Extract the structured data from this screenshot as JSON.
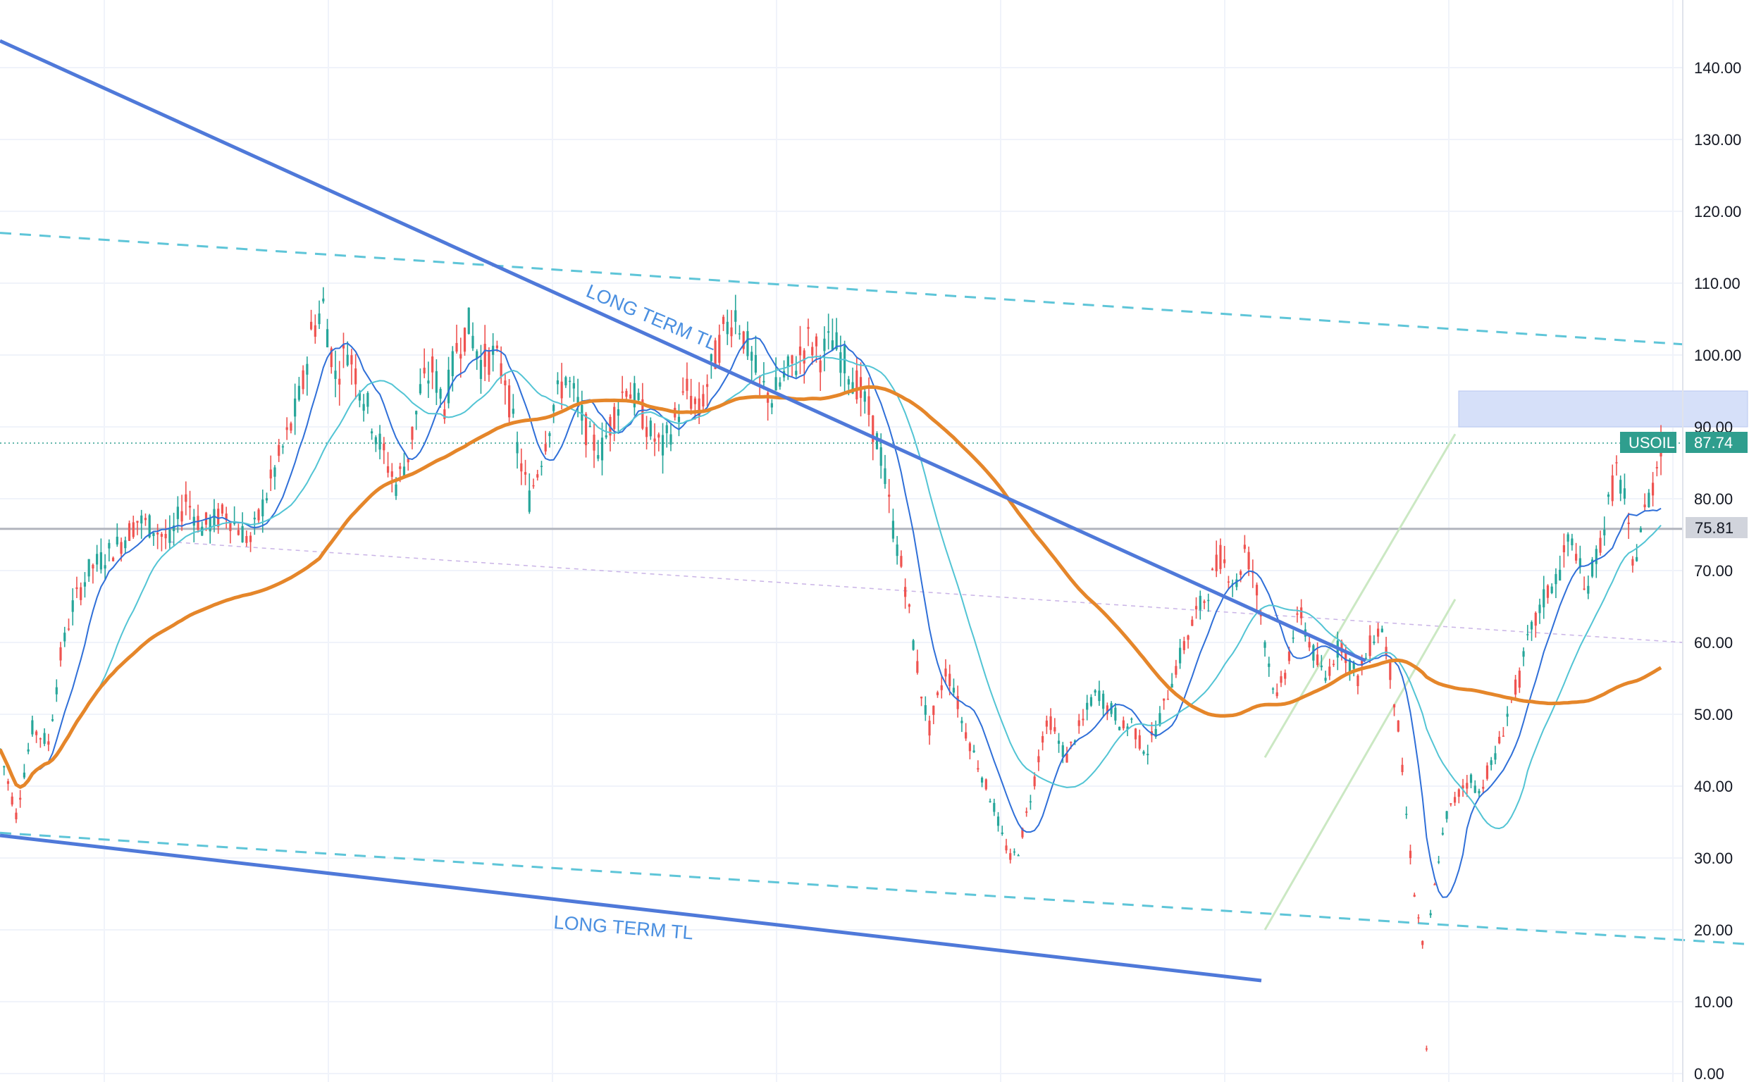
{
  "chart_data": {
    "type": "candlestick",
    "symbol": "USOIL",
    "last_price": "87.74",
    "horizontal_level": "75.81",
    "y_axis": {
      "ticks": [
        "0.00",
        "10.00",
        "20.00",
        "30.00",
        "40.00",
        "50.00",
        "60.00",
        "70.00",
        "80.00",
        "90.00",
        "100.00",
        "110.00",
        "120.00",
        "130.00",
        "140.00"
      ],
      "range": [
        0,
        146
      ]
    },
    "annotations": [
      {
        "text": "LONG TERM TL"
      },
      {
        "text": "LONG TERM TL"
      }
    ],
    "grid": true,
    "price_path": [
      [
        0,
        45
      ],
      [
        8,
        36
      ],
      [
        16,
        48
      ],
      [
        24,
        46
      ],
      [
        30,
        58
      ],
      [
        36,
        65
      ],
      [
        44,
        70
      ],
      [
        52,
        72
      ],
      [
        60,
        74
      ],
      [
        68,
        77
      ],
      [
        76,
        76
      ],
      [
        84,
        74
      ],
      [
        92,
        80
      ],
      [
        100,
        76
      ],
      [
        112,
        78
      ],
      [
        124,
        74
      ],
      [
        136,
        84
      ],
      [
        144,
        90
      ],
      [
        150,
        96
      ],
      [
        154,
        103
      ],
      [
        160,
        107
      ],
      [
        166,
        97
      ],
      [
        172,
        101
      ],
      [
        178,
        96
      ],
      [
        184,
        91
      ],
      [
        190,
        86
      ],
      [
        196,
        82
      ],
      [
        202,
        86
      ],
      [
        208,
        95
      ],
      [
        214,
        98
      ],
      [
        220,
        93
      ],
      [
        226,
        101
      ],
      [
        232,
        104
      ],
      [
        238,
        99
      ],
      [
        244,
        100
      ],
      [
        250,
        97
      ],
      [
        256,
        87
      ],
      [
        262,
        80
      ],
      [
        268,
        86
      ],
      [
        274,
        93
      ],
      [
        280,
        97
      ],
      [
        286,
        93
      ],
      [
        292,
        88
      ],
      [
        298,
        87
      ],
      [
        304,
        92
      ],
      [
        310,
        96
      ],
      [
        316,
        93
      ],
      [
        322,
        89
      ],
      [
        328,
        87
      ],
      [
        334,
        91
      ],
      [
        340,
        95
      ],
      [
        346,
        92
      ],
      [
        352,
        98
      ],
      [
        358,
        103
      ],
      [
        364,
        106
      ],
      [
        370,
        101
      ],
      [
        376,
        96
      ],
      [
        382,
        94
      ],
      [
        388,
        97
      ],
      [
        394,
        99
      ],
      [
        400,
        102
      ],
      [
        406,
        100
      ],
      [
        412,
        102
      ],
      [
        418,
        99
      ],
      [
        424,
        96
      ],
      [
        430,
        92
      ],
      [
        436,
        86
      ],
      [
        442,
        76
      ],
      [
        448,
        68
      ],
      [
        452,
        60
      ],
      [
        456,
        53
      ],
      [
        460,
        48
      ],
      [
        464,
        52
      ],
      [
        468,
        56
      ],
      [
        472,
        54
      ],
      [
        476,
        49
      ],
      [
        480,
        46
      ],
      [
        484,
        43
      ],
      [
        488,
        40
      ],
      [
        492,
        37
      ],
      [
        496,
        33
      ],
      [
        500,
        30
      ],
      [
        504,
        31
      ],
      [
        508,
        36
      ],
      [
        512,
        41
      ],
      [
        516,
        47
      ],
      [
        520,
        49
      ],
      [
        524,
        46
      ],
      [
        528,
        44
      ],
      [
        532,
        47
      ],
      [
        536,
        49
      ],
      [
        540,
        52
      ],
      [
        544,
        53
      ],
      [
        548,
        51
      ],
      [
        552,
        50
      ],
      [
        556,
        48
      ],
      [
        560,
        49
      ],
      [
        564,
        46
      ],
      [
        568,
        45
      ],
      [
        572,
        48
      ],
      [
        576,
        51
      ],
      [
        580,
        55
      ],
      [
        584,
        58
      ],
      [
        588,
        61
      ],
      [
        592,
        64
      ],
      [
        596,
        66
      ],
      [
        600,
        69
      ],
      [
        604,
        72
      ],
      [
        608,
        70
      ],
      [
        612,
        68
      ],
      [
        616,
        73
      ],
      [
        620,
        70
      ],
      [
        624,
        64
      ],
      [
        628,
        57
      ],
      [
        632,
        52
      ],
      [
        636,
        56
      ],
      [
        640,
        61
      ],
      [
        644,
        64
      ],
      [
        648,
        60
      ],
      [
        652,
        57
      ],
      [
        656,
        55
      ],
      [
        660,
        58
      ],
      [
        664,
        60
      ],
      [
        668,
        57
      ],
      [
        672,
        55
      ],
      [
        676,
        58
      ],
      [
        680,
        61
      ],
      [
        684,
        62
      ],
      [
        688,
        56
      ],
      [
        692,
        48
      ],
      [
        696,
        36
      ],
      [
        700,
        25
      ],
      [
        704,
        18
      ],
      [
        706,
        3
      ],
      [
        708,
        22
      ],
      [
        712,
        30
      ],
      [
        716,
        36
      ],
      [
        720,
        38
      ],
      [
        724,
        40
      ],
      [
        728,
        41
      ],
      [
        732,
        39
      ],
      [
        736,
        42
      ],
      [
        740,
        44
      ],
      [
        744,
        48
      ],
      [
        748,
        52
      ],
      [
        752,
        55
      ],
      [
        756,
        60
      ],
      [
        760,
        63
      ],
      [
        764,
        66
      ],
      [
        768,
        68
      ],
      [
        772,
        70
      ],
      [
        776,
        74
      ],
      [
        780,
        73
      ],
      [
        784,
        67
      ],
      [
        788,
        70
      ],
      [
        792,
        74
      ],
      [
        796,
        79
      ],
      [
        800,
        84
      ],
      [
        804,
        80
      ],
      [
        808,
        70
      ],
      [
        812,
        76
      ],
      [
        818,
        82
      ],
      [
        822,
        87.74
      ]
    ]
  }
}
